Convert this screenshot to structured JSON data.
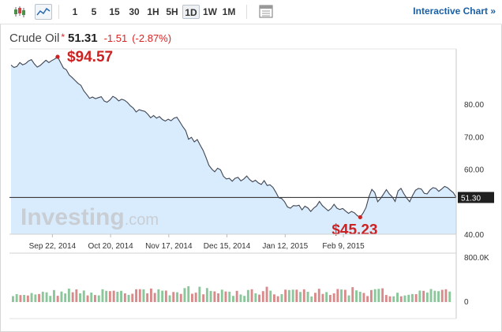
{
  "toolbar": {
    "timeframes": [
      "1",
      "5",
      "15",
      "30",
      "1H",
      "5H",
      "1D",
      "1W",
      "1M"
    ],
    "selected_timeframe": "1D",
    "interactive_label": "Interactive Chart »",
    "icons": [
      "candlestick-chart-icon",
      "line-chart-icon",
      "table-view-icon"
    ]
  },
  "quote": {
    "name": "Crude Oil",
    "marker": "*",
    "price": "51.31",
    "change": "-1.51",
    "change_pct": "(-2.87%)"
  },
  "colors": {
    "line": "#404552",
    "area": "#d9ecfd",
    "up_bar": "#8bc79a",
    "down_bar": "#d98a8a",
    "annotation": "#cc2222",
    "link": "#1a5fa6"
  },
  "chart_data": {
    "type": "area",
    "x_tick_labels": [
      "Sep 22, 2014",
      "Oct 20, 2014",
      "Nov 17, 2014",
      "Dec 15, 2014",
      "Jan 12, 2015",
      "Feb 9, 2015"
    ],
    "y_tick_labels": [
      "80.00",
      "70.00",
      "60.00",
      "40.00"
    ],
    "ylim": [
      40,
      97
    ],
    "last_price_label": "51.30",
    "last_price": 51.3,
    "watermark": "Investing.com",
    "annotations": [
      {
        "label": "$94.57",
        "index": 16,
        "value": 94.57
      },
      {
        "label": "$45.23",
        "index": 120,
        "value": 45.23
      }
    ],
    "series": [
      {
        "values": [
          92.0,
          91.3,
          91.6,
          92.8,
          92.1,
          92.5,
          93.3,
          93.7,
          92.4,
          91.4,
          91.9,
          92.7,
          93.5,
          92.8,
          93.4,
          93.9,
          94.57,
          92.8,
          91.1,
          90.6,
          89.0,
          88.2,
          87.3,
          86.4,
          85.8,
          84.1,
          83.0,
          81.8,
          82.2,
          81.7,
          82.0,
          82.3,
          81.0,
          80.6,
          81.3,
          82.4,
          81.9,
          81.0,
          81.5,
          81.2,
          80.5,
          79.5,
          78.8,
          77.6,
          78.3,
          78.0,
          77.8,
          76.9,
          75.8,
          76.5,
          75.7,
          76.2,
          75.3,
          74.8,
          75.4,
          74.9,
          75.7,
          76.0,
          74.6,
          73.1,
          71.9,
          69.2,
          69.8,
          68.4,
          69.1,
          67.4,
          65.8,
          63.6,
          61.2,
          60.0,
          59.2,
          60.3,
          59.8,
          57.8,
          57.0,
          57.2,
          56.3,
          57.2,
          57.5,
          56.4,
          57.0,
          57.9,
          56.8,
          56.1,
          56.6,
          55.8,
          55.3,
          56.5,
          55.0,
          55.2,
          54.4,
          52.9,
          51.2,
          51.0,
          50.0,
          48.4,
          48.0,
          48.8,
          48.7,
          48.9,
          47.5,
          48.6,
          48.1,
          47.0,
          48.0,
          48.7,
          50.1,
          48.8,
          48.0,
          47.2,
          47.9,
          49.2,
          48.0,
          47.6,
          47.9,
          47.1,
          46.4,
          47.0,
          46.6,
          45.7,
          45.23,
          46.5,
          48.2,
          51.5,
          53.8,
          52.8,
          50.0,
          51.0,
          52.3,
          53.7,
          52.4,
          51.5,
          50.1,
          53.3,
          54.1,
          52.5,
          51.1,
          50.0,
          51.9,
          53.5,
          54.1,
          53.9,
          52.6,
          52.4,
          53.6,
          54.3,
          54.1,
          53.2,
          53.9,
          54.7,
          54.3,
          53.5,
          52.8,
          51.3
        ]
      }
    ],
    "volume": {
      "y_tick_labels": [
        "800.0K",
        "0"
      ],
      "max": 800,
      "values": [
        105,
        141,
        124,
        127,
        116,
        160,
        135,
        143,
        184,
        173,
        110,
        214,
        111,
        187,
        153,
        238,
        174,
        225,
        155,
        205,
        118,
        169,
        125,
        118,
        228,
        200,
        194,
        202,
        183,
        200,
        155,
        128,
        148,
        227,
        229,
        226,
        155,
        240,
        162,
        226,
        202,
        203,
        119,
        178,
        174,
        145,
        249,
        281,
        147,
        167,
        272,
        137,
        248,
        198,
        190,
        155,
        220,
        188,
        184,
        110,
        200,
        135,
        110,
        215,
        227,
        156,
        132,
        194,
        272,
        202,
        136,
        104,
        140,
        220,
        214,
        220,
        221,
        180,
        226,
        183,
        100,
        164,
        236,
        145,
        177,
        127,
        155,
        232,
        223,
        217,
        118,
        265,
        208,
        182,
        162,
        106,
        214,
        229,
        235,
        244,
        125,
        102,
        102,
        165,
        103,
        117,
        129,
        142,
        140,
        203,
        199,
        170,
        231,
        201,
        193,
        217,
        227,
        186
      ],
      "direction": [
        1,
        1,
        0,
        1,
        0,
        1,
        1,
        0,
        1,
        1,
        1,
        1,
        0,
        1,
        1,
        1,
        0,
        0,
        1,
        1,
        0,
        1,
        0,
        1,
        1,
        1,
        0,
        0,
        1,
        1,
        0,
        1,
        0,
        0,
        0,
        1,
        0,
        0,
        0,
        1,
        1,
        0,
        1,
        0,
        1,
        0,
        1,
        1,
        0,
        0,
        1,
        0,
        1,
        1,
        0,
        0,
        1,
        0,
        1,
        1,
        0,
        1,
        1,
        1,
        0,
        1,
        0,
        0,
        0,
        1,
        0,
        0,
        1,
        0,
        1,
        1,
        0,
        1,
        0,
        1,
        1,
        0,
        0,
        0,
        1,
        0,
        0,
        0,
        1,
        0,
        1,
        0,
        1,
        1,
        0,
        0,
        0,
        1,
        1,
        0,
        0,
        0,
        1,
        1,
        0,
        1,
        1,
        1,
        0,
        1,
        0,
        1,
        1,
        1,
        1,
        0,
        0,
        1
      ]
    }
  }
}
